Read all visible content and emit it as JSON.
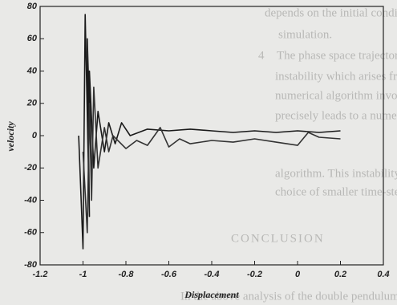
{
  "chart_data": {
    "type": "line",
    "xlabel": "Displacement",
    "ylabel": "velocity",
    "xlim": [
      -1.2,
      0.4
    ],
    "xticks": [
      -1.2,
      -1,
      -0.8,
      -0.6,
      -0.4,
      -0.2,
      0,
      0.2,
      0.4
    ],
    "ylim": [
      -80,
      80
    ],
    "yticks": [
      -80,
      -60,
      -40,
      -20,
      0,
      20,
      40,
      60,
      80
    ],
    "grid": false,
    "series": [
      {
        "color": "#1a1a1a",
        "x": [
          -1.02,
          -1.0,
          -0.99,
          -0.97,
          -0.98,
          -0.96,
          -0.97,
          -0.95,
          -0.93,
          -0.9,
          -0.88,
          -0.85,
          -0.82,
          -0.78,
          -0.7,
          -0.6,
          -0.5,
          -0.4,
          -0.3,
          -0.2,
          -0.1,
          0,
          0.1,
          0.2
        ],
        "values": [
          0,
          -70,
          75,
          -50,
          60,
          -30,
          40,
          -20,
          15,
          -10,
          8,
          -5,
          8,
          0,
          4,
          3,
          4,
          3,
          2,
          3,
          2,
          3,
          2,
          3
        ]
      },
      {
        "color": "#333333",
        "x": [
          -1.0,
          -0.98,
          -0.97,
          -0.96,
          -0.95,
          -0.93,
          -0.9,
          -0.88,
          -0.86,
          -0.8,
          -0.75,
          -0.7,
          -0.64,
          -0.6,
          -0.55,
          -0.5,
          -0.4,
          -0.3,
          -0.2,
          -0.1,
          0,
          0.05,
          0.1,
          0.2
        ],
        "values": [
          -10,
          -60,
          20,
          -40,
          30,
          -20,
          5,
          -10,
          0,
          -8,
          -3,
          -6,
          5,
          -7,
          -2,
          -5,
          -3,
          -4,
          -2,
          -4,
          -6,
          2,
          -1,
          -2
        ]
      }
    ]
  },
  "background_text": [
    "depends on the initial conditions used in",
    "simulation.",
    "4",
    "The phase space trajectories indicate",
    "instability which arises from the instability of",
    "numerical algorithm involved. The use of",
    "precisely leads to a numerical instability in",
    "algorithm. This instability can be removed by",
    "choice of smaller time-step",
    "CONCLUSION",
    "In the above analysis of the double pendulum,"
  ]
}
